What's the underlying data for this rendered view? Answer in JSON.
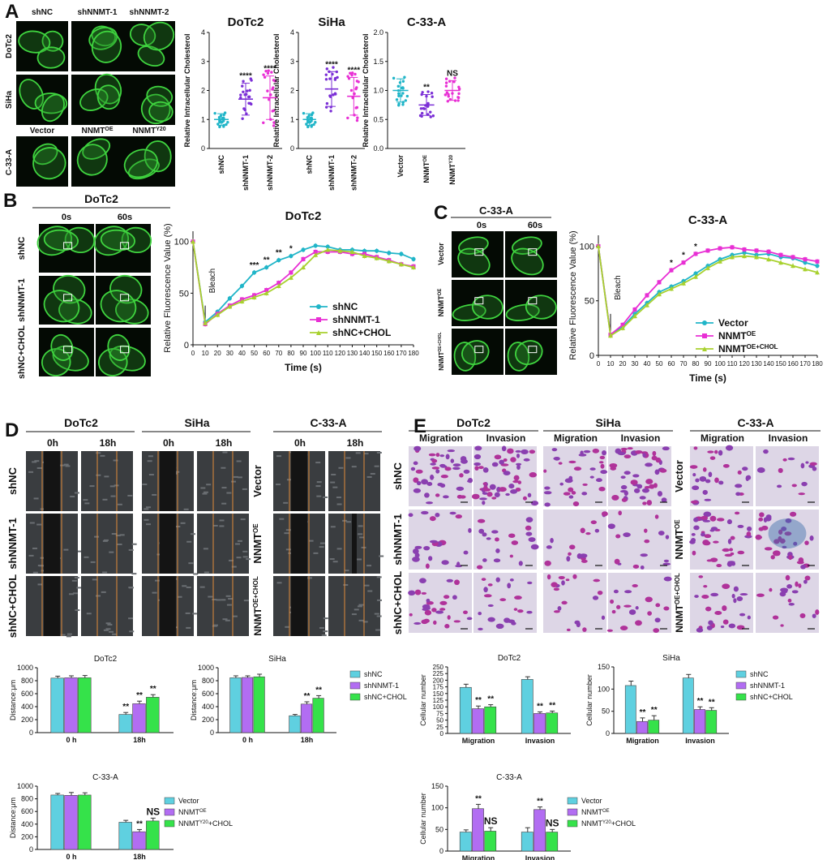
{
  "panel_labels": [
    "A",
    "B",
    "C",
    "D",
    "E"
  ],
  "panel_a": {
    "col_headers_top": [
      "shNC",
      "shNNMT-1",
      "shNNMT-2"
    ],
    "row_labels_top": [
      "DoTc2",
      "SiHa"
    ],
    "col_headers_bottom": [
      "Vector",
      "NNMT",
      "NNMTY20"
    ],
    "row_label_bottom": "C-33-A",
    "ylabel": "Relative Intracellular Cholesterol",
    "yticks": [
      "0",
      "1",
      "2",
      "3",
      "4"
    ],
    "yticks_c33a": [
      "0.0",
      "0.5",
      "1.0",
      "1.5",
      "2.0"
    ],
    "sig_dotc2": [
      "****",
      "****"
    ],
    "sig_siha": [
      "****",
      "****"
    ],
    "sig_c33a": [
      "**",
      "NS"
    ]
  },
  "panel_b": {
    "cell_line": "DoTc2",
    "time_headers": [
      "0s",
      "60s"
    ],
    "rows": [
      "shNC",
      "shNNMT-1",
      "shNC+CHOL"
    ]
  },
  "panel_c": {
    "cell_line": "C-33-A",
    "time_headers": [
      "0s",
      "60s"
    ],
    "rows": [
      "Vector",
      "NNMT",
      "NNMT+CHOL"
    ]
  },
  "panel_d": {
    "groups": [
      "DoTc2",
      "SiHa",
      "C-33-A"
    ],
    "time_headers": [
      "0h",
      "18h"
    ],
    "rows_sh": [
      "shNC",
      "shNNMT-1",
      "shNC+CHOL"
    ],
    "rows_oe": [
      "Vector",
      "NNMT",
      "NNMT+CHOL"
    ]
  },
  "panel_e": {
    "groups": [
      "DoTc2",
      "SiHa",
      "C-33-A"
    ],
    "assay_headers": [
      "Migration",
      "Invasion"
    ],
    "rows_sh": [
      "shNC",
      "shNNMT-1",
      "shNC+CHOL"
    ],
    "rows_oe": [
      "Vector",
      "NNMT",
      "NNMT+CHOL"
    ]
  },
  "colors": {
    "cyan": "#20b5c8",
    "magenta": "#e82fd4",
    "olive": "#a8d12e",
    "bar_cyan": "#5fd0e0",
    "bar_purple": "#b26df2",
    "bar_green": "#35e24a",
    "purple_dots": "#7b2fd6"
  },
  "chart_data": [
    {
      "type": "scatter",
      "title": "DoTc2",
      "ylabel": "Relative Intracellular Cholesterol",
      "categories": [
        "shNC",
        "shNNMT-1",
        "shNNMT-2"
      ],
      "means": [
        1.0,
        1.7,
        1.75
      ],
      "sd": [
        0.2,
        0.55,
        0.75
      ],
      "ylim": [
        0,
        4
      ],
      "annotations": [
        "",
        "****",
        "****"
      ]
    },
    {
      "type": "scatter",
      "title": "SiHa",
      "ylabel": "Relative Intracellular Cholesterol",
      "categories": [
        "shNC",
        "shNNMT-1",
        "shNNMT-2"
      ],
      "means": [
        1.0,
        2.05,
        1.8
      ],
      "sd": [
        0.2,
        0.6,
        0.65
      ],
      "ylim": [
        0,
        4
      ],
      "annotations": [
        "",
        "****",
        "****"
      ]
    },
    {
      "type": "scatter",
      "title": "C-33-A",
      "ylabel": "Relative Intracellular Cholesterol",
      "categories": [
        "Vector",
        "NNMTOE",
        "NNMTY20"
      ],
      "means": [
        1.0,
        0.75,
        1.0
      ],
      "sd": [
        0.2,
        0.18,
        0.17
      ],
      "ylim": [
        0,
        2
      ],
      "annotations": [
        "",
        "**",
        "NS"
      ]
    },
    {
      "type": "line",
      "title": "DoTc2",
      "xlabel": "Time (s)",
      "ylabel": "Relative Fluorescence Value (%)",
      "x": [
        0,
        10,
        20,
        30,
        40,
        50,
        60,
        70,
        80,
        90,
        100,
        110,
        120,
        130,
        140,
        150,
        160,
        170,
        180
      ],
      "xlim": [
        0,
        180
      ],
      "ylim": [
        0,
        110
      ],
      "yticks": [
        0,
        50,
        100
      ],
      "bleach_label": "Bleach",
      "series": [
        {
          "name": "shNC",
          "values": [
            100,
            22,
            32,
            45,
            57,
            70,
            75,
            82,
            86,
            92,
            96,
            95,
            92,
            92,
            91,
            91,
            89,
            88,
            83
          ]
        },
        {
          "name": "shNNMT-1",
          "values": [
            100,
            20,
            30,
            38,
            44,
            48,
            53,
            60,
            70,
            83,
            90,
            90,
            90,
            88,
            88,
            85,
            82,
            78,
            76
          ]
        },
        {
          "name": "shNC+CHOL",
          "values": [
            100,
            21,
            29,
            37,
            42,
            46,
            50,
            57,
            65,
            75,
            87,
            92,
            91,
            90,
            86,
            84,
            81,
            78,
            75
          ]
        }
      ],
      "annotations": [
        {
          "x": 50,
          "text": "***"
        },
        {
          "x": 60,
          "text": "**"
        },
        {
          "x": 70,
          "text": "**"
        },
        {
          "x": 80,
          "text": "*"
        }
      ]
    },
    {
      "type": "line",
      "title": "C-33-A",
      "xlabel": "Time (s)",
      "ylabel": "Relative Fluorescence Value (%)",
      "x": [
        0,
        10,
        20,
        30,
        40,
        50,
        60,
        70,
        80,
        90,
        100,
        110,
        120,
        130,
        140,
        150,
        160,
        170,
        180
      ],
      "xlim": [
        0,
        180
      ],
      "ylim": [
        0,
        110
      ],
      "yticks": [
        0,
        50,
        100
      ],
      "bleach_label": "Bleach",
      "series": [
        {
          "name": "Vector",
          "values": [
            100,
            19,
            26,
            38,
            48,
            58,
            63,
            68,
            75,
            82,
            88,
            92,
            94,
            92,
            93,
            90,
            89,
            85,
            82
          ]
        },
        {
          "name": "NNMT",
          "values": [
            100,
            19,
            28,
            42,
            55,
            67,
            78,
            85,
            93,
            96,
            98,
            99,
            97,
            96,
            95,
            92,
            90,
            88,
            86
          ]
        },
        {
          "name": "NNMT+CHOL",
          "values": [
            100,
            18,
            25,
            36,
            46,
            56,
            61,
            66,
            72,
            80,
            86,
            90,
            91,
            90,
            88,
            85,
            82,
            79,
            76
          ]
        }
      ],
      "annotations": [
        {
          "x": 60,
          "text": "*"
        },
        {
          "x": 70,
          "text": "*"
        },
        {
          "x": 80,
          "text": "*"
        }
      ]
    },
    {
      "type": "bar",
      "title": "DoTc2",
      "ylabel": "Distance:μm",
      "categories": [
        "0 h",
        "18h"
      ],
      "ylim": [
        0,
        1000
      ],
      "yticks": [
        0,
        200,
        400,
        600,
        800,
        1000
      ],
      "series": [
        {
          "name": "shNC",
          "values": [
            840,
            280
          ],
          "err": [
            30,
            30
          ]
        },
        {
          "name": "shNNMT-1",
          "values": [
            845,
            445
          ],
          "err": [
            30,
            40
          ]
        },
        {
          "name": "shNC+CHOL",
          "values": [
            845,
            545
          ],
          "err": [
            35,
            40
          ]
        }
      ],
      "annotations": [
        [
          "",
          "",
          ""
        ],
        [
          "**",
          "**",
          "**"
        ]
      ]
    },
    {
      "type": "bar",
      "title": "SiHa",
      "ylabel": "Distance:μm",
      "categories": [
        "0 h",
        "18h"
      ],
      "ylim": [
        0,
        1000
      ],
      "yticks": [
        0,
        200,
        400,
        600,
        800,
        1000
      ],
      "series": [
        {
          "name": "shNC",
          "values": [
            845,
            260
          ],
          "err": [
            30,
            20
          ]
        },
        {
          "name": "shNNMT-1",
          "values": [
            850,
            440
          ],
          "err": [
            25,
            35
          ]
        },
        {
          "name": "shNC+CHOL",
          "values": [
            860,
            530
          ],
          "err": [
            40,
            40
          ]
        }
      ],
      "annotations": [
        [
          "",
          "",
          ""
        ],
        [
          "",
          "**",
          "**"
        ]
      ]
    },
    {
      "type": "bar",
      "title": "C-33-A",
      "ylabel": "Distance:μm",
      "categories": [
        "0 h",
        "18h"
      ],
      "ylim": [
        0,
        1000
      ],
      "yticks": [
        0,
        200,
        400,
        600,
        800,
        1000
      ],
      "series": [
        {
          "name": "Vector",
          "values": [
            860,
            430
          ],
          "err": [
            25,
            30
          ]
        },
        {
          "name": "NNMT",
          "values": [
            855,
            280
          ],
          "err": [
            45,
            35
          ]
        },
        {
          "name": "NNMT+CHOL",
          "values": [
            860,
            450
          ],
          "err": [
            35,
            45
          ]
        }
      ],
      "annotations": [
        [
          "",
          "",
          ""
        ],
        [
          "",
          "**",
          "NS"
        ]
      ]
    },
    {
      "type": "bar",
      "title": "DoTc2",
      "ylabel": "Cellular number",
      "categories": [
        "Migration",
        "Invasion"
      ],
      "ylim": [
        0,
        250
      ],
      "yticks": [
        0,
        25,
        50,
        75,
        100,
        125,
        150,
        175,
        200,
        225,
        250
      ],
      "series": [
        {
          "name": "shNC",
          "values": [
            173,
            203
          ],
          "err": [
            12,
            10
          ]
        },
        {
          "name": "shNNMT-1",
          "values": [
            93,
            75
          ],
          "err": [
            10,
            6
          ]
        },
        {
          "name": "shNC+CHOL",
          "values": [
            100,
            77
          ],
          "err": [
            8,
            7
          ]
        }
      ],
      "annotations": [
        [
          "",
          "**",
          "**"
        ],
        [
          "",
          "**",
          "**"
        ]
      ]
    },
    {
      "type": "bar",
      "title": "SiHa",
      "ylabel": "Cellular number",
      "categories": [
        "Migration",
        "Invasion"
      ],
      "ylim": [
        0,
        150
      ],
      "yticks": [
        0,
        50,
        100,
        150
      ],
      "series": [
        {
          "name": "shNC",
          "values": [
            108,
            125
          ],
          "err": [
            10,
            8
          ]
        },
        {
          "name": "shNNMT-1",
          "values": [
            27,
            54
          ],
          "err": [
            8,
            6
          ]
        },
        {
          "name": "shNC+CHOL",
          "values": [
            30,
            52
          ],
          "err": [
            10,
            6
          ]
        }
      ],
      "annotations": [
        [
          "",
          "**",
          "**"
        ],
        [
          "",
          "**",
          "**"
        ]
      ]
    },
    {
      "type": "bar",
      "title": "C-33-A",
      "ylabel": "Cellular number",
      "categories": [
        "Migration",
        "Invasion"
      ],
      "ylim": [
        0,
        150
      ],
      "yticks": [
        0,
        50,
        100,
        150
      ],
      "series": [
        {
          "name": "Vector",
          "values": [
            44,
            44
          ],
          "err": [
            5,
            10
          ]
        },
        {
          "name": "NNMT",
          "values": [
            98,
            96
          ],
          "err": [
            10,
            6
          ]
        },
        {
          "name": "NNMT+CHOL",
          "values": [
            46,
            44
          ],
          "err": [
            8,
            6
          ]
        }
      ],
      "annotations": [
        [
          "",
          "**",
          "NS"
        ],
        [
          "",
          "**",
          "NS"
        ]
      ]
    }
  ]
}
